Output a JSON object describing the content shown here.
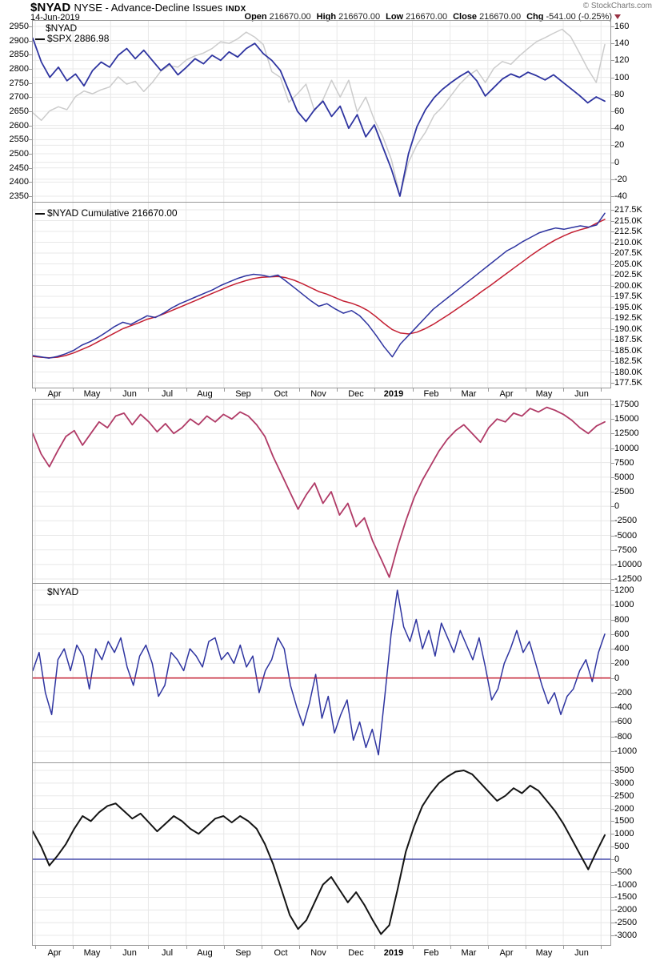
{
  "header": {
    "symbol": "$NYAD",
    "name": "NYSE - Advance-Decline Issues",
    "exchange": "INDX",
    "date": "14-Jun-2019",
    "copyright": "© StockCharts.com",
    "quote": {
      "open": {
        "label": "Open",
        "value": "216670.00"
      },
      "high": {
        "label": "High",
        "value": "216670.00"
      },
      "low": {
        "label": "Low",
        "value": "216670.00"
      },
      "close": {
        "label": "Close",
        "value": "216670.00"
      },
      "chg": {
        "label": "Chg",
        "value": "-541.00 (-0.25%)"
      }
    },
    "change_direction_icon": "down-triangle"
  },
  "colors": {
    "blue": "#2e34a0",
    "gray": "#cccccc",
    "red": "#c42033",
    "rose": "#b03a66",
    "black": "#141414",
    "grid": "#e8e8e8",
    "frame": "#999999",
    "change_triangle": "#993344"
  },
  "x_axis": {
    "labels": [
      "Apr",
      "May",
      "Jun",
      "Jul",
      "Aug",
      "Sep",
      "Oct",
      "Nov",
      "Dec",
      "2019",
      "Feb",
      "Mar",
      "Apr",
      "May",
      "Jun"
    ],
    "bold_label": "2019"
  },
  "chart_data": [
    {
      "panel": "price-overlay",
      "type": "line",
      "legend": {
        "line1": "$NYAD",
        "line2": "$SPX 2886.98"
      },
      "left_axis": {
        "min": 2350,
        "max": 2950,
        "tick_values": [
          2950,
          2900,
          2850,
          2800,
          2750,
          2700,
          2650,
          2600,
          2550,
          2500,
          2450,
          2400,
          2350
        ],
        "tick_labels": [
          "2950",
          "2900",
          "2850",
          "2800",
          "2750",
          "2700",
          "2650",
          "2600",
          "2550",
          "2500",
          "2450",
          "2400",
          "2350"
        ]
      },
      "right_axis": {
        "min": -40,
        "max": 160,
        "tick_values": [
          160,
          140,
          120,
          100,
          80,
          60,
          40,
          20,
          0,
          -20,
          -40
        ],
        "tick_labels": [
          "160",
          "140",
          "120",
          "100",
          "80",
          "60",
          "40",
          "20",
          "0",
          "-20",
          "-40"
        ]
      },
      "series": [
        {
          "name": "$SPX",
          "axis": "left",
          "color": "#cccccc",
          "width": 1.5,
          "values": [
            2645,
            2618,
            2652,
            2666,
            2656,
            2702,
            2722,
            2712,
            2726,
            2736,
            2772,
            2746,
            2756,
            2720,
            2752,
            2792,
            2812,
            2806,
            2832,
            2846,
            2856,
            2872,
            2896,
            2890,
            2906,
            2930,
            2912,
            2886,
            2790,
            2770,
            2682,
            2712,
            2746,
            2652,
            2692,
            2760,
            2700,
            2760,
            2648,
            2700,
            2620,
            2560,
            2480,
            2351,
            2470,
            2532,
            2576,
            2636,
            2666,
            2706,
            2746,
            2776,
            2796,
            2752,
            2802,
            2826,
            2816,
            2846,
            2872,
            2896,
            2910,
            2926,
            2940,
            2914,
            2858,
            2800,
            2752,
            2886
          ]
        },
        {
          "name": "$NYAD",
          "axis": "right",
          "color": "#2e34a0",
          "width": 1.8,
          "values": [
            146,
            118,
            100,
            112,
            96,
            104,
            90,
            108,
            118,
            112,
            126,
            134,
            122,
            132,
            120,
            108,
            116,
            103,
            112,
            122,
            116,
            126,
            120,
            130,
            124,
            134,
            140,
            128,
            120,
            108,
            84,
            60,
            48,
            62,
            72,
            54,
            66,
            40,
            56,
            30,
            44,
            18,
            -8,
            -40,
            10,
            42,
            62,
            76,
            86,
            94,
            101,
            107,
            96,
            78,
            88,
            98,
            104,
            100,
            106,
            102,
            97,
            103,
            95,
            87,
            79,
            70,
            77,
            72
          ]
        }
      ]
    },
    {
      "panel": "nyad-cumulative",
      "type": "line",
      "legend": {
        "line1": "$NYAD Cumulative 216670.00"
      },
      "right_axis": {
        "min": 177.5,
        "max": 217.5,
        "unit": "K",
        "tick_values": [
          217.5,
          215.0,
          212.5,
          210.0,
          207.5,
          205.0,
          202.5,
          200.0,
          197.5,
          195.0,
          192.5,
          190.0,
          187.5,
          185.0,
          182.5,
          180.0,
          177.5
        ],
        "tick_labels": [
          "217.5K",
          "215.0K",
          "212.5K",
          "210.0K",
          "207.5K",
          "205.0K",
          "202.5K",
          "200.0K",
          "197.5K",
          "195.0K",
          "192.5K",
          "190.0K",
          "187.5K",
          "185.0K",
          "182.5K",
          "180.0K",
          "177.5K"
        ]
      },
      "series": [
        {
          "name": "cumulative-ma",
          "axis": "right",
          "color": "#c42033",
          "width": 1.5,
          "values": [
            183.6,
            183.4,
            183.3,
            183.4,
            183.8,
            184.4,
            185.2,
            186.0,
            187.0,
            188.0,
            189.0,
            190.0,
            190.7,
            191.4,
            192.2,
            192.7,
            193.4,
            194.2,
            195.0,
            195.8,
            196.6,
            197.4,
            198.2,
            199.0,
            199.8,
            200.5,
            201.1,
            201.6,
            201.9,
            202.0,
            202.1,
            201.8,
            201.2,
            200.4,
            199.5,
            198.6,
            198.0,
            197.2,
            196.4,
            195.9,
            195.2,
            194.2,
            192.8,
            191.2,
            189.8,
            189.0,
            188.8,
            189.2,
            190.0,
            191.0,
            192.2,
            193.4,
            194.7,
            196.0,
            197.3,
            198.7,
            200.0,
            201.4,
            202.8,
            204.2,
            205.6,
            207.0,
            208.3,
            209.5,
            210.6,
            211.5,
            212.3,
            212.9,
            213.4,
            214.4,
            215.3
          ]
        },
        {
          "name": "cumulative",
          "axis": "right",
          "color": "#2e34a0",
          "width": 1.5,
          "values": [
            183.8,
            183.5,
            183.2,
            183.6,
            184.2,
            185.0,
            186.2,
            187.0,
            188.0,
            189.2,
            190.5,
            191.5,
            191.0,
            192.0,
            193.0,
            192.6,
            193.6,
            194.8,
            195.8,
            196.6,
            197.4,
            198.2,
            199.0,
            200.0,
            200.8,
            201.6,
            202.2,
            202.6,
            202.4,
            202.0,
            202.4,
            201.0,
            199.5,
            198.0,
            196.5,
            195.2,
            195.8,
            194.6,
            193.6,
            194.2,
            193.0,
            191.0,
            188.5,
            185.8,
            183.5,
            186.5,
            188.5,
            190.5,
            192.5,
            194.5,
            196.0,
            197.5,
            199.0,
            200.5,
            202.0,
            203.5,
            205.0,
            206.5,
            208.0,
            209.0,
            210.2,
            211.2,
            212.2,
            212.8,
            213.3,
            213.0,
            213.4,
            213.8,
            213.5,
            214.0,
            216.7
          ]
        }
      ]
    },
    {
      "panel": "nyad-smoothed",
      "type": "line",
      "right_axis": {
        "min": -12500,
        "max": 17500,
        "tick_values": [
          17500,
          15000,
          12500,
          10000,
          7500,
          5000,
          2500,
          0,
          -2500,
          -5000,
          -7500,
          -10000,
          -12500
        ],
        "tick_labels": [
          "17500",
          "15000",
          "12500",
          "10000",
          "7500",
          "5000",
          "2500",
          "0",
          "-2500",
          "-5000",
          "-7500",
          "-10000",
          "-12500"
        ]
      },
      "series": [
        {
          "name": "nyad-smoothed",
          "axis": "right",
          "color": "#b03a66",
          "width": 1.8,
          "values": [
            12500,
            9000,
            6800,
            9500,
            12000,
            13000,
            10500,
            12500,
            14500,
            13500,
            15500,
            16000,
            14000,
            15800,
            14500,
            12800,
            14200,
            12500,
            13500,
            15000,
            14000,
            15500,
            14500,
            15800,
            15000,
            16200,
            15500,
            14000,
            12000,
            8500,
            5500,
            2500,
            -500,
            2000,
            4000,
            500,
            2500,
            -1500,
            500,
            -3500,
            -2000,
            -6000,
            -9000,
            -12200,
            -7000,
            -2500,
            1500,
            4500,
            7000,
            9500,
            11500,
            13000,
            14000,
            12500,
            11000,
            13500,
            15000,
            14500,
            16000,
            15500,
            16800,
            16200,
            17000,
            16500,
            15800,
            14800,
            13500,
            12500,
            13800,
            14500
          ]
        }
      ]
    },
    {
      "panel": "nyad-daily",
      "type": "line",
      "legend": {
        "line1": "$NYAD"
      },
      "right_axis": {
        "min": -1000,
        "max": 1200,
        "tick_values": [
          1200,
          1000,
          800,
          600,
          400,
          200,
          0,
          -200,
          -400,
          -600,
          -800,
          -1000
        ],
        "tick_labels": [
          "1200",
          "1000",
          "800",
          "600",
          "400",
          "200",
          "0",
          "-200",
          "-400",
          "-600",
          "-800",
          "-1000"
        ]
      },
      "hline": {
        "value": 0,
        "color": "#c42033",
        "on_top": true
      },
      "series": [
        {
          "name": "nyad-daily",
          "axis": "right",
          "color": "#2e34a0",
          "width": 1.5,
          "values": [
            100,
            350,
            -200,
            -500,
            250,
            400,
            100,
            450,
            300,
            -150,
            400,
            250,
            500,
            350,
            550,
            150,
            -100,
            300,
            450,
            200,
            -250,
            -100,
            350,
            250,
            100,
            400,
            300,
            150,
            500,
            550,
            250,
            350,
            200,
            450,
            150,
            300,
            -200,
            100,
            250,
            550,
            400,
            -100,
            -400,
            -650,
            -350,
            50,
            -550,
            -250,
            -750,
            -500,
            -300,
            -850,
            -600,
            -950,
            -700,
            -1050,
            -250,
            600,
            1200,
            700,
            500,
            800,
            400,
            650,
            300,
            750,
            550,
            350,
            650,
            450,
            250,
            550,
            150,
            -300,
            -150,
            200,
            400,
            650,
            350,
            500,
            200,
            -100,
            -350,
            -200,
            -500,
            -250,
            -150,
            100,
            250,
            -50,
            350,
            600
          ]
        }
      ]
    },
    {
      "panel": "nyad-momentum",
      "type": "line",
      "right_axis": {
        "min": -3000,
        "max": 3500,
        "tick_values": [
          3500,
          3000,
          2500,
          2000,
          1500,
          1000,
          500,
          0,
          -500,
          -1000,
          -1500,
          -2000,
          -2500,
          -3000
        ],
        "tick_labels": [
          "3500",
          "3000",
          "2500",
          "2000",
          "1500",
          "1000",
          "500",
          "0",
          "-500",
          "-1000",
          "-1500",
          "-2000",
          "-2500",
          "-3000"
        ]
      },
      "hline": {
        "value": 0,
        "color": "#2e34a0",
        "on_top": false
      },
      "series": [
        {
          "name": "nyad-momentum",
          "axis": "right",
          "color": "#141414",
          "width": 2,
          "values": [
            1100,
            500,
            -250,
            150,
            600,
            1200,
            1700,
            1500,
            1850,
            2100,
            2200,
            1900,
            1600,
            1800,
            1450,
            1100,
            1400,
            1700,
            1500,
            1200,
            1000,
            1300,
            1600,
            1700,
            1450,
            1700,
            1500,
            1200,
            600,
            -200,
            -1200,
            -2200,
            -2750,
            -2400,
            -1700,
            -1000,
            -700,
            -1200,
            -1700,
            -1300,
            -1800,
            -2400,
            -2950,
            -2600,
            -1200,
            300,
            1300,
            2100,
            2600,
            3000,
            3250,
            3450,
            3500,
            3350,
            3000,
            2650,
            2300,
            2500,
            2800,
            2600,
            2900,
            2700,
            2300,
            1900,
            1400,
            800,
            200,
            -400,
            300,
            950
          ]
        }
      ]
    }
  ]
}
